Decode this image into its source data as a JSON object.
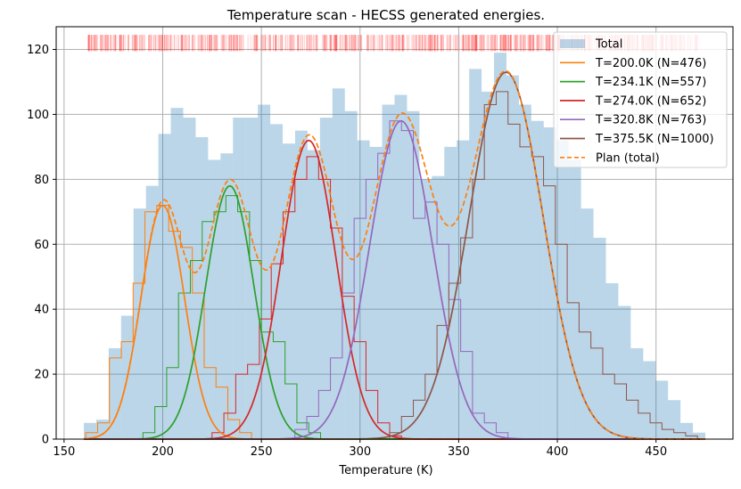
{
  "chart_data": {
    "type": "histogram",
    "title": "Temperature scan - HECSS generated energies.",
    "xlabel": "Temperature (K)",
    "ylabel": "",
    "xlim": [
      146,
      489
    ],
    "ylim": [
      0,
      127
    ],
    "x_ticks": [
      150,
      200,
      250,
      300,
      350,
      400,
      450
    ],
    "y_ticks": [
      0,
      20,
      40,
      60,
      80,
      100,
      120
    ],
    "grid": true,
    "legend_position": "top-right",
    "colors": {
      "total": "#1f77b4",
      "T200": "#ff7f0e",
      "T234": "#2ca02c",
      "T274": "#d62728",
      "T321": "#9467bd",
      "T375": "#8c564b",
      "plan": "#ff7f0e",
      "rug": "#ff0000"
    },
    "total_histogram": {
      "name": "Total",
      "bin_start": 160,
      "bin_width": 6.3,
      "counts": [
        5,
        6,
        28,
        38,
        71,
        78,
        94,
        102,
        99,
        93,
        86,
        88,
        99,
        99,
        103,
        97,
        91,
        95,
        89,
        99,
        108,
        101,
        92,
        90,
        103,
        106,
        101,
        80,
        81,
        90,
        92,
        114,
        107,
        119,
        112,
        103,
        98,
        96,
        92,
        86,
        71,
        62,
        48,
        41,
        28,
        24,
        18,
        12,
        5,
        2
      ]
    },
    "series": [
      {
        "name": "T=200.0K (N=476)",
        "temperature": 200.0,
        "n": 476,
        "mu": 200.0,
        "sigma": 11.0,
        "amplitude": 72,
        "step_x": [
          161,
          167,
          173,
          179,
          185,
          191,
          197,
          203,
          209,
          215,
          221,
          227,
          233,
          239,
          245
        ],
        "step_y": [
          2,
          5,
          25,
          30,
          48,
          70,
          72,
          64,
          59,
          45,
          22,
          16,
          6,
          2,
          0
        ]
      },
      {
        "name": "T=234.1K (N=557)",
        "temperature": 234.1,
        "n": 557,
        "mu": 234.0,
        "sigma": 12.2,
        "amplitude": 78,
        "step_x": [
          190,
          196,
          202,
          208,
          214,
          220,
          226,
          232,
          238,
          244,
          250,
          256,
          262,
          268,
          274,
          280
        ],
        "step_y": [
          2,
          10,
          22,
          45,
          55,
          67,
          70,
          75,
          70,
          55,
          33,
          30,
          17,
          5,
          2,
          0
        ]
      },
      {
        "name": "T=274.0K (N=652)",
        "temperature": 274.0,
        "n": 652,
        "mu": 274.0,
        "sigma": 13.8,
        "amplitude": 92,
        "step_x": [
          225,
          231,
          237,
          243,
          249,
          255,
          261,
          267,
          273,
          279,
          285,
          291,
          297,
          303,
          309,
          315
        ],
        "step_y": [
          2,
          8,
          20,
          23,
          37,
          54,
          70,
          80,
          87,
          80,
          65,
          44,
          30,
          15,
          5,
          1
        ]
      },
      {
        "name": "T=320.8K (N=763)",
        "temperature": 320.8,
        "n": 763,
        "mu": 320.8,
        "sigma": 16.0,
        "amplitude": 98,
        "step_x": [
          267,
          273,
          279,
          285,
          291,
          297,
          303,
          309,
          315,
          321,
          327,
          333,
          339,
          345,
          351,
          357,
          363,
          369
        ],
        "step_y": [
          3,
          7,
          15,
          25,
          45,
          68,
          80,
          88,
          98,
          95,
          68,
          73,
          60,
          43,
          27,
          8,
          5,
          2
        ]
      },
      {
        "name": "T=375.5K (N=1000)",
        "temperature": 375.5,
        "n": 1000,
        "mu": 374.0,
        "sigma": 18.8,
        "amplitude": 113,
        "step_x": [
          315,
          321,
          327,
          333,
          339,
          345,
          351,
          357,
          363,
          369,
          375,
          381,
          387,
          393,
          399,
          405,
          411,
          417,
          423,
          429,
          435,
          441,
          447,
          453,
          459,
          465,
          471
        ],
        "step_y": [
          2,
          7,
          12,
          20,
          35,
          48,
          62,
          80,
          103,
          107,
          97,
          90,
          87,
          78,
          60,
          42,
          33,
          28,
          20,
          17,
          12,
          8,
          5,
          3,
          2,
          1,
          0
        ]
      }
    ],
    "plan": {
      "name": "Plan (total)",
      "style": "dashed"
    }
  }
}
